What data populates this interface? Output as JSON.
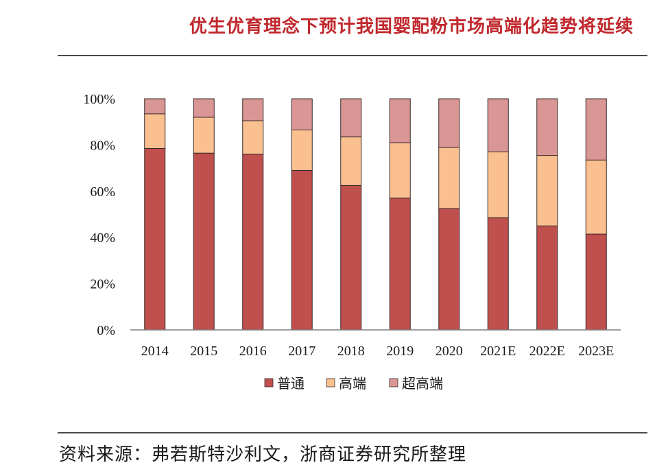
{
  "title": "优生优育理念下预计我国婴配粉市场高端化趋势将延续",
  "source": "资料来源：弗若斯特沙利文，浙商证券研究所整理",
  "chart_data": {
    "type": "bar",
    "stacked": true,
    "categories": [
      "2014",
      "2015",
      "2016",
      "2017",
      "2018",
      "2019",
      "2020",
      "2021E",
      "2022E",
      "2023E"
    ],
    "ylim": [
      0,
      100
    ],
    "yticks": [
      "0%",
      "20%",
      "40%",
      "60%",
      "80%",
      "100%"
    ],
    "ytick_values": [
      0,
      20,
      40,
      60,
      80,
      100
    ],
    "legend_position": "bottom",
    "series": [
      {
        "name": "普通",
        "color": "#c0504d",
        "values": [
          78.5,
          76.5,
          76.0,
          69.0,
          62.5,
          57.0,
          52.5,
          48.5,
          45.0,
          41.5
        ]
      },
      {
        "name": "高端",
        "color": "#fac090",
        "values": [
          15.0,
          15.5,
          14.5,
          17.5,
          21.0,
          24.0,
          26.5,
          28.5,
          30.5,
          32.0
        ]
      },
      {
        "name": "超高端",
        "color": "#d99694",
        "values": [
          6.5,
          8.0,
          9.5,
          13.5,
          16.5,
          19.0,
          21.0,
          23.0,
          24.5,
          26.5
        ]
      }
    ]
  }
}
